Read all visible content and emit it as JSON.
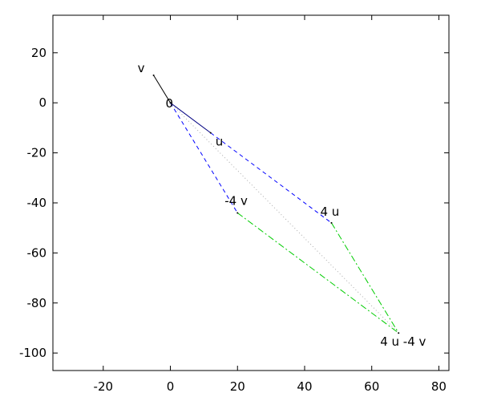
{
  "chart_data": {
    "type": "line",
    "title": "",
    "xlabel": "",
    "ylabel": "",
    "xlim": [
      -35,
      83
    ],
    "ylim": [
      -107,
      35
    ],
    "grid": false,
    "x_ticks": [
      -20,
      0,
      20,
      40,
      60,
      80
    ],
    "y_ticks": [
      20,
      0,
      -20,
      -40,
      -60,
      -80,
      -100
    ],
    "points": [
      {
        "label": "0",
        "x": 0,
        "y": 0
      },
      {
        "label": "u",
        "x": 12,
        "y": -12
      },
      {
        "label": "v",
        "x": -5,
        "y": 11
      },
      {
        "label": "4 u",
        "x": 48,
        "y": -48
      },
      {
        "label": "-4 v",
        "x": 20,
        "y": -44
      },
      {
        "label": "4 u -4 v",
        "x": 68,
        "y": -92
      }
    ],
    "segments": [
      {
        "from": [
          0,
          0
        ],
        "to": [
          12,
          -12
        ],
        "style": "solid",
        "color": "#000080"
      },
      {
        "from": [
          0,
          0
        ],
        "to": [
          -5,
          11
        ],
        "style": "solid",
        "color": "#000000"
      },
      {
        "from": [
          12,
          -12
        ],
        "to": [
          48,
          -48
        ],
        "style": "dashed",
        "color": "#0000ff"
      },
      {
        "from": [
          0,
          0
        ],
        "to": [
          20,
          -44
        ],
        "style": "dashed",
        "color": "#0000ff"
      },
      {
        "from": [
          48,
          -48
        ],
        "to": [
          68,
          -92
        ],
        "style": "dashdot",
        "color": "#00cc00"
      },
      {
        "from": [
          20,
          -44
        ],
        "to": [
          68,
          -92
        ],
        "style": "dashdot",
        "color": "#00cc00"
      },
      {
        "from": [
          0,
          0
        ],
        "to": [
          68,
          -92
        ],
        "style": "dotted",
        "color": "#aaaaaa"
      }
    ]
  }
}
